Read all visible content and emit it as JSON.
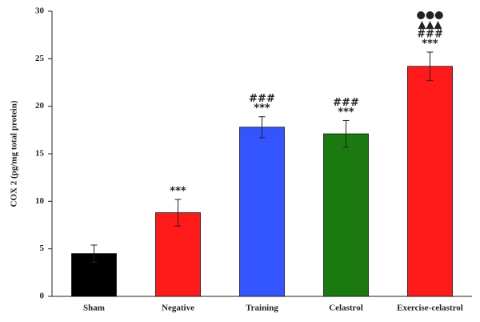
{
  "chart_data": {
    "type": "bar",
    "y_label": "COX 2 (pg/mg total protein)",
    "categories": [
      "Sham",
      "Negative",
      "Training",
      "Celastrol",
      "Exercise-celastrol"
    ],
    "values": [
      4.5,
      8.8,
      17.8,
      17.1,
      24.2
    ],
    "errors": [
      0.9,
      1.4,
      1.1,
      1.4,
      1.5
    ],
    "colors": [
      "#000000",
      "#ff1a1a",
      "#3355ff",
      "#1a7a0f",
      "#ff1a1a"
    ],
    "annotations": [
      [],
      [
        "***"
      ],
      [
        "###",
        "***"
      ],
      [
        "###",
        "***"
      ],
      [
        "●●●",
        "▲▲▲",
        "###",
        "***"
      ]
    ],
    "ylim": [
      0,
      30
    ],
    "yticks": [
      0,
      5,
      10,
      15,
      20,
      25,
      30
    ],
    "grid": false
  }
}
